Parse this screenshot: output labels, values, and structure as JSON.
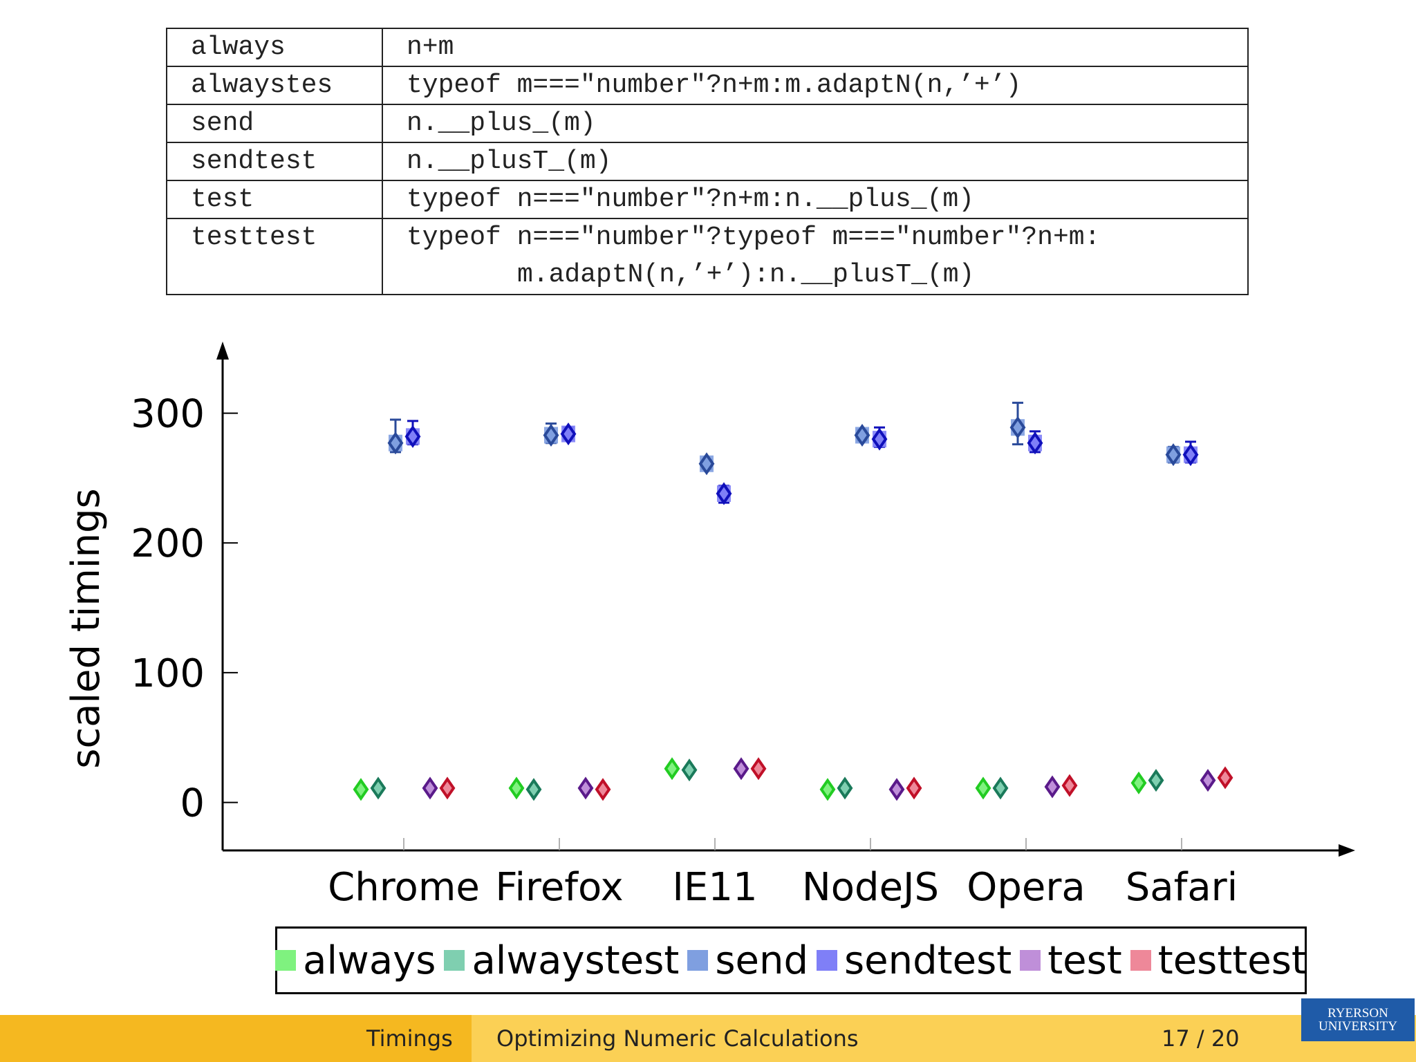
{
  "code_table": [
    {
      "name": "always",
      "code": [
        "n+m"
      ]
    },
    {
      "name": "alwaystes",
      "code": [
        "typeof m===\"number\"?n+m:m.adaptN(n,’+’)"
      ]
    },
    {
      "name": "send",
      "code": [
        "n.__plus_(m)"
      ]
    },
    {
      "name": "sendtest",
      "code": [
        "n.__plusT_(m)"
      ]
    },
    {
      "name": "test",
      "code": [
        "typeof n===\"number\"?n+m:n.__plus_(m)"
      ]
    },
    {
      "name": "testtest",
      "code": [
        "typeof n===\"number\"?typeof m===\"number\"?n+m:",
        "m.adaptN(n,’+’):n.__plusT_(m)"
      ]
    }
  ],
  "chart_data": {
    "type": "scatter",
    "title": "",
    "xlabel": "",
    "ylabel": "scaled timings",
    "categories": [
      "Chrome",
      "Firefox",
      "IE11",
      "NodeJS",
      "Opera",
      "Safari"
    ],
    "ylim": [
      -37,
      352
    ],
    "yticks": [
      0,
      100,
      200,
      300
    ],
    "legend_position": "bottom",
    "series": [
      {
        "name": "always",
        "color": "#7ff27f",
        "marker_color": "#22cc22",
        "values": [
          10,
          11,
          26,
          10,
          11,
          15
        ]
      },
      {
        "name": "alwaystest",
        "color": "#7fcfb0",
        "marker_color": "#1a7a5a",
        "values": [
          11,
          10,
          25,
          11,
          11,
          17
        ]
      },
      {
        "name": "send",
        "color": "#7f9fe0",
        "marker_color": "#2a4a9a",
        "values": [
          277,
          283,
          261,
          283,
          289,
          268
        ],
        "err": [
          [
            270,
            295
          ],
          [
            277,
            292
          ],
          [
            257,
            264
          ],
          [
            279,
            287
          ],
          [
            276,
            308
          ],
          [
            262,
            274
          ]
        ]
      },
      {
        "name": "sendtest",
        "color": "#7f7ff7",
        "marker_color": "#1010bb",
        "values": [
          282,
          284,
          238,
          280,
          277,
          268
        ],
        "err": [
          [
            276,
            294
          ],
          [
            280,
            289
          ],
          [
            231,
            244
          ],
          [
            274,
            289
          ],
          [
            270,
            286
          ],
          [
            262,
            278
          ]
        ]
      },
      {
        "name": "test",
        "color": "#bf8fd9",
        "marker_color": "#5a1a8a",
        "values": [
          11,
          11,
          26,
          10,
          12,
          17
        ]
      },
      {
        "name": "testtest",
        "color": "#ee8899",
        "marker_color": "#c01028",
        "values": [
          11,
          10,
          26,
          11,
          13,
          19
        ]
      }
    ]
  },
  "footer": {
    "section": "Timings",
    "title": "Optimizing Numeric Calculations",
    "page": "17 / 20"
  },
  "logo": {
    "line1": "RYERSON",
    "line2": "UNIVERSITY"
  }
}
